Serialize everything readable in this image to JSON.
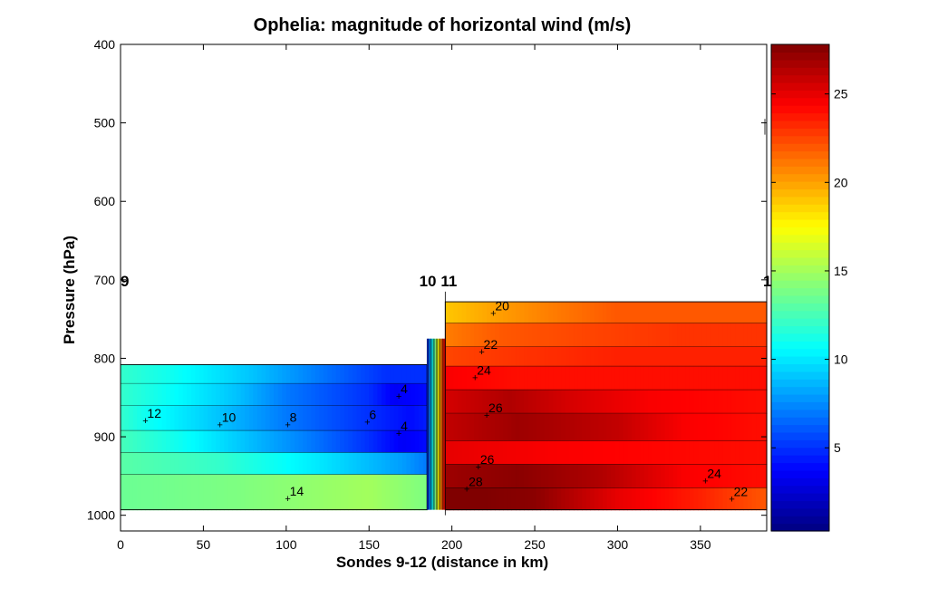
{
  "chart_data": {
    "type": "heatmap",
    "subtype": "filled-contour",
    "title": "Ophelia: magnitude of horizontal wind (m/s)",
    "xlabel": "Sondes 9-12 (distance in km)",
    "ylabel": "Pressure (hPa)",
    "xlim": [
      0,
      390
    ],
    "ylim": [
      400,
      1020
    ],
    "y_reversed": true,
    "xticks": [
      "0",
      "50",
      "100",
      "150",
      "200",
      "250",
      "300",
      "350"
    ],
    "xtick_values": [
      0,
      50,
      100,
      150,
      200,
      250,
      300,
      350
    ],
    "yticks": [
      "400",
      "500",
      "600",
      "700",
      "800",
      "900",
      "1000"
    ],
    "ytick_values": [
      400,
      500,
      600,
      700,
      800,
      900,
      1000
    ],
    "colorbar": {
      "range": [
        0.3,
        27.8
      ],
      "ticks": [
        "5",
        "10",
        "15",
        "20",
        "25"
      ],
      "tick_values": [
        5,
        10,
        15,
        20,
        25
      ],
      "colormap": "jet"
    },
    "sondes": [
      {
        "label": "9",
        "x": 0
      },
      {
        "label": "10",
        "x": 189
      },
      {
        "label": "11",
        "x": 196
      },
      {
        "label": "1",
        "x": 390
      }
    ],
    "sonde_label_pressure": 700,
    "regions": [
      {
        "name": "left",
        "x0": 0,
        "x1": 185,
        "p_top": 808,
        "p_bottom": 993,
        "bands": [
          {
            "p0": 808,
            "p1": 832,
            "profile": [
              [
                0,
                12
              ],
              [
                30,
                11
              ],
              [
                80,
                9
              ],
              [
                120,
                7
              ],
              [
                160,
                5
              ],
              [
                185,
                5
              ]
            ]
          },
          {
            "p0": 832,
            "p1": 860,
            "profile": [
              [
                0,
                12
              ],
              [
                25,
                11
              ],
              [
                70,
                9
              ],
              [
                100,
                7
              ],
              [
                150,
                5
              ],
              [
                165,
                3.5
              ],
              [
                185,
                4
              ]
            ]
          },
          {
            "p0": 860,
            "p1": 892,
            "profile": [
              [
                0,
                12
              ],
              [
                15,
                11
              ],
              [
                60,
                9
              ],
              [
                100,
                7
              ],
              [
                150,
                5
              ],
              [
                175,
                4
              ],
              [
                185,
                4.5
              ]
            ]
          },
          {
            "p0": 892,
            "p1": 920,
            "profile": [
              [
                0,
                12.5
              ],
              [
                35,
                11
              ],
              [
                75,
                9
              ],
              [
                115,
                7
              ],
              [
                150,
                5
              ],
              [
                170,
                3.5
              ],
              [
                185,
                4
              ]
            ]
          },
          {
            "p0": 920,
            "p1": 948,
            "profile": [
              [
                0,
                13
              ],
              [
                60,
                12
              ],
              [
                120,
                10
              ],
              [
                170,
                8
              ],
              [
                185,
                7
              ]
            ]
          },
          {
            "p0": 948,
            "p1": 993,
            "profile": [
              [
                0,
                13.5
              ],
              [
                70,
                14
              ],
              [
                110,
                14.5
              ],
              [
                150,
                15
              ],
              [
                185,
                14
              ]
            ]
          }
        ]
      },
      {
        "name": "right",
        "x0": 196,
        "x1": 390,
        "p_top": 728,
        "p_bottom": 993,
        "bands": [
          {
            "p0": 728,
            "p1": 755,
            "profile": [
              [
                196,
                19
              ],
              [
                225,
                20
              ],
              [
                260,
                21
              ],
              [
                300,
                22
              ],
              [
                390,
                22
              ]
            ]
          },
          {
            "p0": 755,
            "p1": 785,
            "profile": [
              [
                196,
                21
              ],
              [
                230,
                22
              ],
              [
                280,
                22.5
              ],
              [
                340,
                23
              ],
              [
                390,
                23
              ]
            ]
          },
          {
            "p0": 785,
            "p1": 810,
            "profile": [
              [
                196,
                22.5
              ],
              [
                240,
                23
              ],
              [
                300,
                23.5
              ],
              [
                390,
                23.5
              ]
            ]
          },
          {
            "p0": 810,
            "p1": 840,
            "profile": [
              [
                196,
                24.5
              ],
              [
                240,
                24
              ],
              [
                300,
                24
              ],
              [
                390,
                24
              ]
            ]
          },
          {
            "p0": 840,
            "p1": 870,
            "profile": [
              [
                196,
                25.5
              ],
              [
                235,
                26.5
              ],
              [
                270,
                25.5
              ],
              [
                320,
                24.5
              ],
              [
                390,
                24
              ]
            ]
          },
          {
            "p0": 870,
            "p1": 905,
            "profile": [
              [
                196,
                26
              ],
              [
                240,
                27
              ],
              [
                300,
                26
              ],
              [
                340,
                24.5
              ],
              [
                390,
                24
              ]
            ]
          },
          {
            "p0": 905,
            "p1": 935,
            "profile": [
              [
                196,
                25
              ],
              [
                260,
                24.5
              ],
              [
                390,
                24
              ]
            ]
          },
          {
            "p0": 935,
            "p1": 965,
            "profile": [
              [
                196,
                27
              ],
              [
                240,
                27.5
              ],
              [
                290,
                26.5
              ],
              [
                340,
                24.5
              ],
              [
                390,
                24
              ]
            ]
          },
          {
            "p0": 965,
            "p1": 993,
            "profile": [
              [
                196,
                28
              ],
              [
                250,
                27.5
              ],
              [
                300,
                25
              ],
              [
                350,
                23.5
              ],
              [
                390,
                22
              ]
            ]
          }
        ]
      }
    ],
    "contour_labels": [
      {
        "text": "12",
        "x": 15,
        "p": 878
      },
      {
        "text": "10",
        "x": 60,
        "p": 883
      },
      {
        "text": "8",
        "x": 101,
        "p": 883
      },
      {
        "text": "6",
        "x": 149,
        "p": 880
      },
      {
        "text": "4",
        "x": 168,
        "p": 847
      },
      {
        "text": "4",
        "x": 168,
        "p": 894
      },
      {
        "text": "14",
        "x": 101,
        "p": 977
      },
      {
        "text": "20",
        "x": 225,
        "p": 741
      },
      {
        "text": "22",
        "x": 218,
        "p": 790
      },
      {
        "text": "24",
        "x": 214,
        "p": 823
      },
      {
        "text": "26",
        "x": 221,
        "p": 871
      },
      {
        "text": "26",
        "x": 216,
        "p": 937
      },
      {
        "text": "28",
        "x": 209,
        "p": 965
      },
      {
        "text": "24",
        "x": 353,
        "p": 955
      },
      {
        "text": "22",
        "x": 369,
        "p": 978
      }
    ]
  }
}
